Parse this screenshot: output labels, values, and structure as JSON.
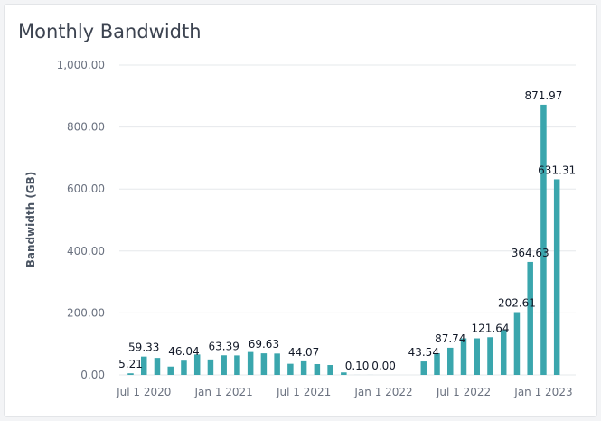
{
  "card": {
    "title": "Monthly Bandwidth"
  },
  "colors": {
    "bar": "#3aa6ad",
    "grid": "#e6e8eb"
  },
  "chart_data": {
    "type": "bar",
    "title": "Monthly Bandwidth",
    "ylabel": "Bandwidth (GB)",
    "ylim": [
      0,
      1000
    ],
    "grid": true,
    "yticks": [
      "0.00",
      "200.00",
      "400.00",
      "600.00",
      "800.00",
      "1,000.00"
    ],
    "xticks": [
      {
        "label": "Jul 1 2020",
        "month": "2020-07"
      },
      {
        "label": "Jan 1 2021",
        "month": "2021-01"
      },
      {
        "label": "Jul 1 2021",
        "month": "2021-07"
      },
      {
        "label": "Jan 1 2022",
        "month": "2022-01"
      },
      {
        "label": "Jul 1 2022",
        "month": "2022-07"
      },
      {
        "label": "Jan 1 2023",
        "month": "2023-01"
      }
    ],
    "categories": [
      "2020-06",
      "2020-07",
      "2020-08",
      "2020-09",
      "2020-10",
      "2020-11",
      "2020-12",
      "2021-01",
      "2021-02",
      "2021-03",
      "2021-04",
      "2021-05",
      "2021-06",
      "2021-07",
      "2021-08",
      "2021-09",
      "2021-10",
      "2021-11",
      "2021-12",
      "2022-01",
      "2022-02",
      "2022-03",
      "2022-04",
      "2022-05",
      "2022-06",
      "2022-07",
      "2022-08",
      "2022-09",
      "2022-10",
      "2022-11",
      "2022-12",
      "2023-01",
      "2023-02"
    ],
    "values": [
      5.21,
      59.33,
      55,
      27,
      46.04,
      66,
      50,
      63.39,
      63,
      74,
      69.63,
      69,
      36,
      44.07,
      35,
      32,
      8,
      0.1,
      0.1,
      0,
      0,
      0,
      43.54,
      70,
      87.74,
      118,
      118,
      121.64,
      145,
      202.61,
      364.63,
      871.97,
      631.31
    ],
    "data_labels": [
      {
        "index": 0,
        "text": "5.21"
      },
      {
        "index": 1,
        "text": "59.33"
      },
      {
        "index": 4,
        "text": "46.04"
      },
      {
        "index": 7,
        "text": "63.39"
      },
      {
        "index": 10,
        "text": "69.63"
      },
      {
        "index": 13,
        "text": "44.07"
      },
      {
        "index": 17,
        "text": "0.10"
      },
      {
        "index": 19,
        "text": "0.00"
      },
      {
        "index": 22,
        "text": "43.54"
      },
      {
        "index": 24,
        "text": "87.74"
      },
      {
        "index": 27,
        "text": "121.64"
      },
      {
        "index": 29,
        "text": "202.61"
      },
      {
        "index": 30,
        "text": "364.63"
      },
      {
        "index": 31,
        "text": "871.97"
      },
      {
        "index": 32,
        "text": "631.31"
      }
    ]
  }
}
